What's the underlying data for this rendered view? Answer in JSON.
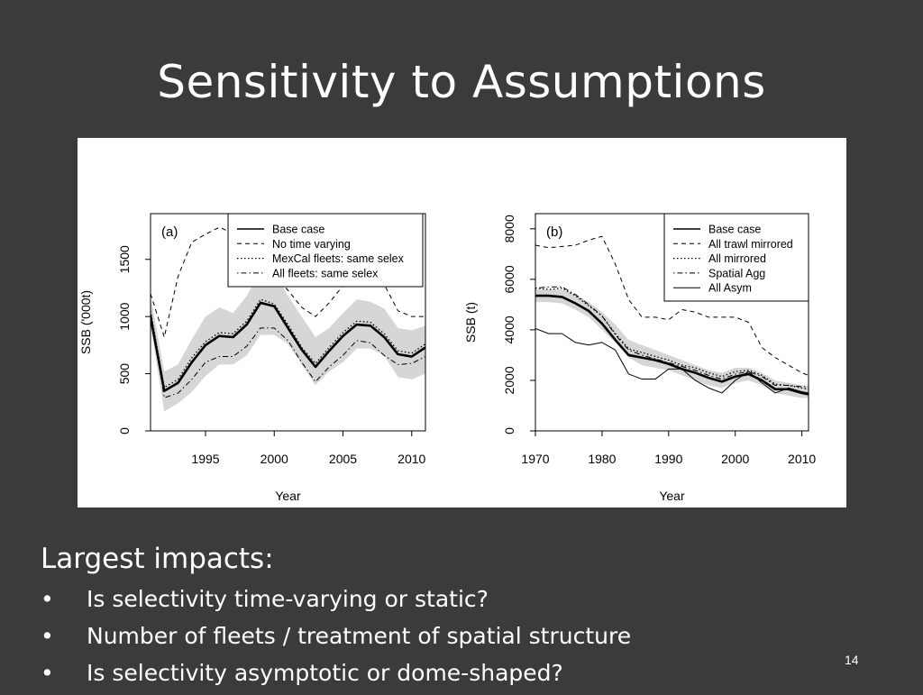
{
  "slide": {
    "title": "Sensitivity to Assumptions",
    "number": "14",
    "impacts_heading": "Largest impacts:",
    "bullets": [
      "Is selectivity time-varying or static?",
      "Number of fleets / treatment of spatial structure",
      "Is selectivity asymptotic or dome-shaped?"
    ]
  },
  "chart_data": [
    {
      "type": "line",
      "panel_label": "(a)",
      "xlabel": "Year",
      "ylabel": "SSB ('000t)",
      "xlim": [
        1991,
        2011
      ],
      "ylim": [
        0,
        1900
      ],
      "xticks": [
        1995,
        2000,
        2005,
        2010
      ],
      "yticks": [
        0,
        500,
        1000,
        1500
      ],
      "grid": false,
      "legend_position": "top-right",
      "x": [
        1991,
        1992,
        1993,
        1994,
        1995,
        1996,
        1997,
        1998,
        1999,
        2000,
        2001,
        2002,
        2003,
        2004,
        2005,
        2006,
        2007,
        2008,
        2009,
        2010,
        2011
      ],
      "band": {
        "upper": [
          1180,
          520,
          580,
          800,
          1000,
          1080,
          1030,
          1180,
          1400,
          1400,
          1180,
          1000,
          820,
          900,
          1030,
          1150,
          1130,
          1070,
          900,
          880,
          920
        ],
        "lower": [
          920,
          170,
          240,
          340,
          480,
          580,
          580,
          660,
          840,
          840,
          760,
          580,
          400,
          520,
          600,
          720,
          720,
          660,
          470,
          450,
          500
        ]
      },
      "series": [
        {
          "name": "Base case",
          "style": "solid-thick",
          "values": [
            1000,
            350,
            420,
            600,
            750,
            830,
            820,
            930,
            1120,
            1090,
            900,
            710,
            560,
            700,
            830,
            930,
            920,
            820,
            670,
            650,
            730
          ]
        },
        {
          "name": "No time varying",
          "style": "dashed",
          "values": [
            1200,
            820,
            1350,
            1650,
            1720,
            1780,
            1730,
            1640,
            1450,
            1350,
            1230,
            1080,
            1000,
            1120,
            1270,
            1330,
            1300,
            1280,
            1050,
            1000,
            1000
          ]
        },
        {
          "name": "MexCal fleets: same selex",
          "style": "dotted",
          "values": [
            1050,
            380,
            450,
            640,
            780,
            860,
            850,
            960,
            1150,
            1110,
            930,
            730,
            590,
            730,
            860,
            960,
            950,
            850,
            700,
            680,
            760
          ]
        },
        {
          "name": "All fleets: same selex",
          "style": "dotdash",
          "values": [
            1050,
            290,
            330,
            450,
            600,
            650,
            650,
            740,
            900,
            900,
            790,
            600,
            430,
            560,
            660,
            790,
            770,
            660,
            580,
            590,
            650
          ]
        }
      ]
    },
    {
      "type": "line",
      "panel_label": "(b)",
      "xlabel": "Year",
      "ylabel": "SSB (t)",
      "xlim": [
        1970,
        2011
      ],
      "ylim": [
        0,
        8600
      ],
      "xticks": [
        1970,
        1980,
        1990,
        2000,
        2010
      ],
      "yticks": [
        0,
        2000,
        4000,
        6000,
        8000
      ],
      "grid": false,
      "legend_position": "top-right",
      "x": [
        1970,
        1972,
        1974,
        1976,
        1978,
        1980,
        1982,
        1984,
        1986,
        1988,
        1990,
        1992,
        1994,
        1996,
        1998,
        2000,
        2002,
        2004,
        2006,
        2008,
        2010,
        2011
      ],
      "band": {
        "upper": [
          5600,
          5600,
          5600,
          5400,
          5100,
          4700,
          4200,
          3600,
          3400,
          3200,
          3000,
          2800,
          2600,
          2400,
          2300,
          2500,
          2500,
          2300,
          2000,
          1900,
          1800,
          1800
        ],
        "lower": [
          5100,
          5100,
          5050,
          4800,
          4500,
          4000,
          3500,
          2900,
          2600,
          2500,
          2400,
          2200,
          2000,
          1800,
          1700,
          1900,
          2000,
          1800,
          1500,
          1400,
          1300,
          1300
        ]
      },
      "series": [
        {
          "name": "Base case",
          "style": "solid-thick",
          "values": [
            5350,
            5350,
            5300,
            5050,
            4750,
            4250,
            3600,
            3000,
            2900,
            2800,
            2650,
            2450,
            2300,
            2100,
            1950,
            2150,
            2250,
            2000,
            1650,
            1650,
            1500,
            1450
          ]
        },
        {
          "name": "All trawl mirrored",
          "style": "dashed",
          "values": [
            7350,
            7250,
            7300,
            7350,
            7550,
            7700,
            6600,
            5200,
            4500,
            4500,
            4400,
            4800,
            4700,
            4500,
            4500,
            4500,
            4300,
            3300,
            2900,
            2600,
            2300,
            2200
          ]
        },
        {
          "name": "All mirrored",
          "style": "dotted",
          "values": [
            5650,
            5600,
            5650,
            5350,
            4950,
            4550,
            3850,
            3250,
            3100,
            2950,
            2800,
            2600,
            2500,
            2300,
            2150,
            2350,
            2400,
            2200,
            1850,
            1800,
            1700,
            1650
          ]
        },
        {
          "name": "Spatial Agg",
          "style": "dotdash",
          "values": [
            5650,
            5700,
            5700,
            5400,
            5000,
            4550,
            3800,
            3200,
            3000,
            2850,
            2700,
            2550,
            2400,
            2200,
            2050,
            2250,
            2350,
            2150,
            1800,
            1800,
            1750,
            1750
          ]
        },
        {
          "name": "All Asym",
          "style": "solid-thin",
          "values": [
            4050,
            3850,
            3850,
            3500,
            3400,
            3500,
            3200,
            2250,
            2050,
            2050,
            2450,
            2450,
            2000,
            1700,
            1500,
            2000,
            2350,
            1900,
            1500,
            1700,
            1550,
            1500
          ]
        }
      ]
    }
  ]
}
